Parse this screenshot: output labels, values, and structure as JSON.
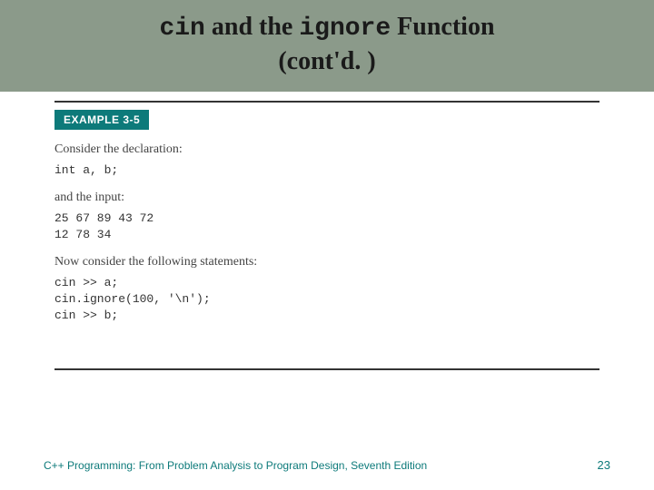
{
  "colors": {
    "banner_bg": "#8b9a8a",
    "badge_bg": "#0d7a7a",
    "badge_text": "#ffffff",
    "title_text": "#1a1a1a",
    "body_text": "#444444",
    "code_text": "#333333",
    "rule": "#333333",
    "footer_text": "#0d7a7a",
    "page_bg": "#ffffff"
  },
  "typography": {
    "title_fontsize": 28,
    "body_fontsize": 14,
    "code_fontsize": 13,
    "badge_fontsize": 12,
    "footer_fontsize": 12
  },
  "header": {
    "title_code1": "cin",
    "title_mid1": " and the ",
    "title_code2": "ignore",
    "title_mid2": " Function",
    "subtitle": "(cont'd. )"
  },
  "example": {
    "badge_label": "EXAMPLE 3-5",
    "para1": "Consider the declaration:",
    "code1": "int a, b;",
    "para2": "and the input:",
    "code2": "25 67 89 43 72\n12 78 34",
    "para3": "Now consider the following statements:",
    "code3": "cin >> a;\ncin.ignore(100, '\\n');\ncin >> b;"
  },
  "footer": {
    "text": "C++ Programming: From Problem Analysis to Program Design, Seventh Edition",
    "page": "23"
  }
}
